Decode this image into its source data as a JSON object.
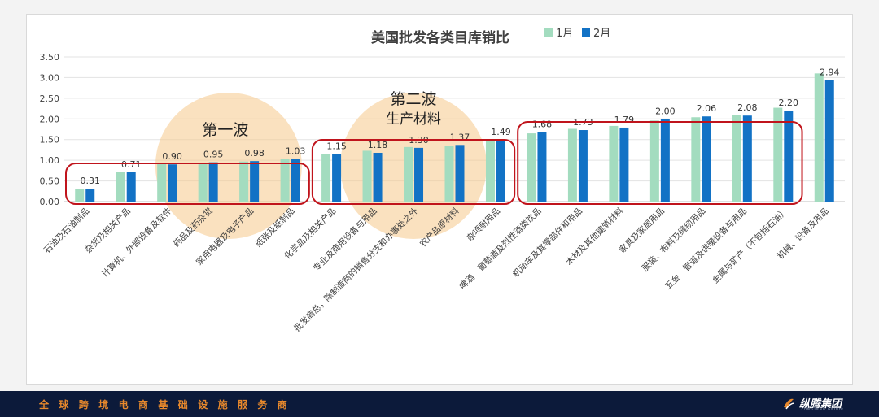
{
  "footer": {
    "slogan": "全球跨境电商基础设施服务商"
  },
  "logo": {
    "name": "纵腾集团",
    "subtitle": "ZONGTENG GROUP"
  },
  "chart_data": {
    "type": "bar",
    "title": "美国批发各类目库销比",
    "legend_position": "top-right",
    "categories": [
      "石油及石油制品",
      "杂货及相关产品",
      "计算机、外部设备及软件",
      "药品及药杂货",
      "家用电器及电子产品",
      "纸张及纸制品",
      "化学品及相关产品",
      "专业及商用设备与用品",
      "批发商总，除制造商的销售分支和办事处之外",
      "农产品原材料",
      "杂项耐用品",
      "啤酒、葡萄酒及烈性酒类饮品",
      "机动车及其零部件和用品",
      "木材及其他建筑材料",
      "家具及家居用品",
      "服装、布料及缝纫用品",
      "五金、管道及供暖设备与用品",
      "金属与矿产（不包括石油）",
      "机械、设备及用品"
    ],
    "series": [
      {
        "name": "1月",
        "color": "#a3dcbf",
        "values": [
          0.31,
          0.72,
          0.92,
          0.93,
          0.97,
          1.03,
          1.16,
          1.23,
          1.32,
          1.35,
          1.5,
          1.65,
          1.76,
          1.83,
          1.96,
          2.04,
          2.1,
          2.27,
          3.1
        ]
      },
      {
        "name": "2月",
        "color": "#1272c5",
        "values": [
          0.31,
          0.71,
          0.9,
          0.95,
          0.98,
          1.03,
          1.15,
          1.18,
          1.3,
          1.37,
          1.49,
          1.68,
          1.73,
          1.79,
          2.0,
          2.06,
          2.08,
          2.2,
          2.94
        ]
      }
    ],
    "data_labels": [
      "0.31",
      "0.71",
      "0.90",
      "0.95",
      "0.98",
      "1.03",
      "1.15",
      "1.18",
      "1.30",
      "1.37",
      "1.49",
      "1.68",
      "1.73",
      "1.79",
      "2.00",
      "2.06",
      "2.08",
      "2.20",
      "2.94"
    ],
    "y_ticks": [
      "0.00",
      "0.50",
      "1.00",
      "1.50",
      "2.00",
      "2.50",
      "3.00",
      "3.50"
    ],
    "ylim": [
      0,
      3.5
    ],
    "grid": true,
    "annotations": {
      "wave1_label": "第一波",
      "wave2_label_line1": "第二波",
      "wave2_label_line2": "生产材料"
    },
    "highlight_boxes": [
      {
        "from": 0,
        "to": 5,
        "color": "#c0141c"
      },
      {
        "from": 6,
        "to": 10,
        "color": "#c0141c"
      },
      {
        "from": 11,
        "to": 17,
        "color": "#c0141c"
      }
    ],
    "highlight_circles": [
      {
        "center_index": 3.5,
        "color": "#f6c98a"
      },
      {
        "center_index": 8.0,
        "color": "#f6c98a"
      }
    ]
  }
}
